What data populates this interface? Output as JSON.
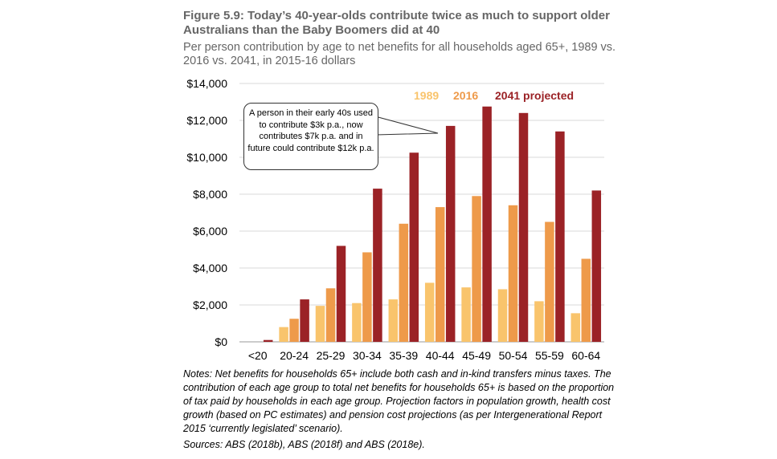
{
  "title": "Figure 5.9: Today’s 40-year-olds contribute twice as much to support older Australians than the Baby Boomers did at 40",
  "subtitle": "Per person contribution by age to net benefits for all households aged 65+, 1989 vs. 2016 vs. 2041, in 2015-16 dollars",
  "callout": "A person in their early 40s used to contribute $3k p.a., now contributes $7k p.a. and in future could contribute $12k p.a.",
  "notes": "Notes: Net benefits for households 65+ include both cash and in-kind transfers minus taxes. The contribution of each age group to total net benefits for households 65+ is based on the proportion of tax paid by households in each age group. Projection factors in population growth, health cost growth (based on PC estimates) and pension cost projections (as per Intergenerational Report 2015 ‘currently legislated’ scenario).",
  "sources": "Sources: ABS (2018b), ABS (2018f) and ABS (2018e).",
  "chart_data": {
    "type": "bar",
    "categories": [
      "<20",
      "20-24",
      "25-29",
      "30-34",
      "35-39",
      "40-44",
      "45-49",
      "50-54",
      "55-59",
      "60-64"
    ],
    "series": [
      {
        "name": "1989",
        "color": "#f9c46c",
        "values": [
          0,
          800,
          1950,
          2100,
          2300,
          3200,
          2950,
          2850,
          2200,
          1550
        ]
      },
      {
        "name": "2016",
        "color": "#ee9a4a",
        "values": [
          0,
          1250,
          2900,
          4850,
          6400,
          7300,
          7900,
          7400,
          6500,
          4500
        ]
      },
      {
        "name": "2041 projected",
        "color": "#9b2226",
        "values": [
          100,
          2300,
          5200,
          8300,
          10250,
          11700,
          12750,
          12400,
          11400,
          8200
        ]
      }
    ],
    "yticks": [
      "$0",
      "$2,000",
      "$4,000",
      "$6,000",
      "$8,000",
      "$10,000",
      "$12,000",
      "$14,000"
    ],
    "ylim": [
      0,
      14000
    ],
    "grid": true,
    "legend": "top-right"
  }
}
